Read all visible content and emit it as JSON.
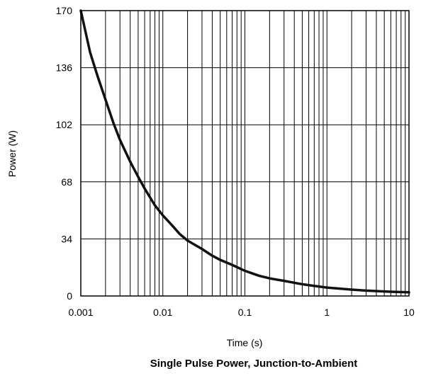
{
  "chart_data": {
    "type": "line",
    "title": "Single Pulse Power, Junction-to-Ambient",
    "xlabel": "Time (s)",
    "ylabel": "Power (W)",
    "x_scale": "log",
    "xlim": [
      0.001,
      10
    ],
    "ylim": [
      0,
      170
    ],
    "x_ticks": [
      0.001,
      0.01,
      0.1,
      1,
      10
    ],
    "x_tick_labels": [
      "0.001",
      "0.01",
      "0.1",
      "1",
      "10"
    ],
    "y_ticks": [
      0,
      34,
      68,
      102,
      136,
      170
    ],
    "y_tick_labels": [
      "0",
      "34",
      "68",
      "102",
      "136",
      "170"
    ],
    "grid": true,
    "legend": "none",
    "series": [
      {
        "color": "#111111",
        "x": [
          0.001,
          0.0013,
          0.0016,
          0.002,
          0.0025,
          0.003,
          0.004,
          0.005,
          0.006,
          0.008,
          0.01,
          0.013,
          0.016,
          0.02,
          0.03,
          0.04,
          0.05,
          0.07,
          0.1,
          0.15,
          0.2,
          0.3,
          0.5,
          0.7,
          1,
          2,
          3,
          5,
          7,
          10
        ],
        "y": [
          170,
          145,
          131,
          117,
          103,
          93,
          80,
          71,
          64,
          54,
          48,
          42,
          37,
          33,
          28,
          24,
          21.5,
          18.5,
          15,
          12,
          10.5,
          9,
          7,
          6,
          5,
          3.8,
          3.2,
          2.7,
          2.4,
          2.2
        ]
      }
    ]
  }
}
